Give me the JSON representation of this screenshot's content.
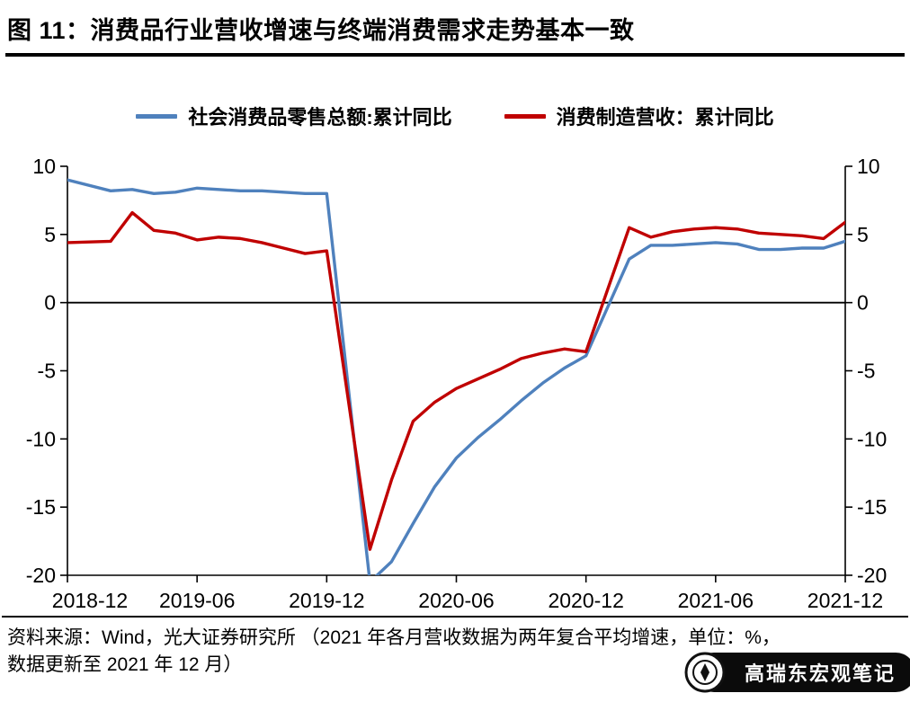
{
  "footer": {
    "line1": "资料来源：Wind，光大证券研究所 （2021 年各月营收数据为两年复合平均增速，单位：%，",
    "line2": "数据更新至 2021 年 12 月）",
    "watermark": "高瑞东宏观笔记"
  },
  "chart_data": {
    "type": "line",
    "title": "图 11：消费品行业营收增速与终端消费需求走势基本一致",
    "unit": "%",
    "grid": false,
    "legend_position": "top",
    "ylim": [
      -20,
      10
    ],
    "yticks": [
      10,
      5,
      0,
      -5,
      -10,
      -15,
      -20
    ],
    "x_axis": {
      "month_span": 36,
      "tick_months": [
        0,
        6,
        12,
        18,
        24,
        30,
        36
      ],
      "tick_labels": [
        "2018-12",
        "2019-06",
        "2019-12",
        "2020-06",
        "2020-12",
        "2021-06",
        "2021-12"
      ]
    },
    "x_months": [
      0,
      2,
      3,
      4,
      5,
      6,
      7,
      8,
      9,
      10,
      11,
      12,
      14,
      15,
      16,
      17,
      18,
      19,
      20,
      21,
      22,
      23,
      24,
      26,
      27,
      28,
      29,
      30,
      31,
      32,
      33,
      34,
      35,
      36
    ],
    "x_labels": [
      "2018-12",
      "2019-02",
      "2019-03",
      "2019-04",
      "2019-05",
      "2019-06",
      "2019-07",
      "2019-08",
      "2019-09",
      "2019-10",
      "2019-11",
      "2019-12",
      "2020-02",
      "2020-03",
      "2020-04",
      "2020-05",
      "2020-06",
      "2020-07",
      "2020-08",
      "2020-09",
      "2020-10",
      "2020-11",
      "2020-12",
      "2021-02",
      "2021-03",
      "2021-04",
      "2021-05",
      "2021-06",
      "2021-07",
      "2021-08",
      "2021-09",
      "2021-10",
      "2021-11",
      "2021-12"
    ],
    "series": [
      {
        "name": "社会消费品零售总额:累计同比",
        "color": "#4F81BD",
        "values": [
          9.0,
          8.2,
          8.3,
          8.0,
          8.1,
          8.4,
          8.3,
          8.2,
          8.2,
          8.1,
          8.0,
          8.0,
          -20.5,
          -19.0,
          -16.2,
          -13.5,
          -11.4,
          -9.9,
          -8.6,
          -7.2,
          -5.9,
          -4.8,
          -3.9,
          3.2,
          4.2,
          4.2,
          4.3,
          4.4,
          4.3,
          3.9,
          3.9,
          4.0,
          4.0,
          4.5
        ]
      },
      {
        "name": "消费制造营收：累计同比",
        "color": "#C00000",
        "values": [
          4.4,
          4.5,
          6.6,
          5.3,
          5.1,
          4.6,
          4.8,
          4.7,
          4.4,
          4.0,
          3.6,
          3.8,
          -18.1,
          -13.0,
          -8.7,
          -7.3,
          -6.3,
          -5.6,
          -4.9,
          -4.1,
          -3.7,
          -3.4,
          -3.6,
          5.5,
          4.8,
          5.2,
          5.4,
          5.5,
          5.4,
          5.1,
          5.0,
          4.9,
          4.7,
          5.9
        ]
      }
    ]
  }
}
